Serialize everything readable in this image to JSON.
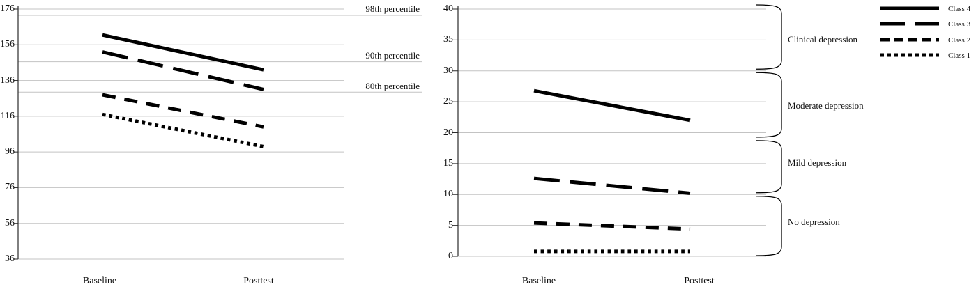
{
  "figure": {
    "background": "#ffffff",
    "panels": [
      "left-percentile-chart",
      "right-depression-chart"
    ]
  },
  "colors": {
    "series_line": "#000000",
    "gridline": "#c3c3c3",
    "axis": "#2b2b2b",
    "text": "#111111"
  },
  "chart_data": [
    {
      "type": "line",
      "title": "",
      "xlabel": "",
      "ylabel": "",
      "x_categories": [
        "Baseline",
        "Posttest"
      ],
      "ylim": [
        36,
        176
      ],
      "yticks": [
        176,
        156,
        136,
        116,
        96,
        76,
        56,
        36
      ],
      "grid": "horizontal",
      "legend_position": "none",
      "series": [
        {
          "name": "Class 4",
          "style": "solid",
          "values": [
            161.5,
            142
          ]
        },
        {
          "name": "Class 3",
          "style": "long-dash",
          "values": [
            152,
            131
          ]
        },
        {
          "name": "Class 2",
          "style": "dash",
          "values": [
            128,
            110
          ]
        },
        {
          "name": "Class 1",
          "style": "dot",
          "values": [
            117,
            99
          ]
        }
      ],
      "reference_lines": [
        {
          "label": "98th percentile",
          "value": 172.5
        },
        {
          "label": "90th percentile",
          "value": 146.5
        },
        {
          "label": "80th percentile",
          "value": 129.5
        }
      ]
    },
    {
      "type": "line",
      "title": "",
      "xlabel": "",
      "ylabel": "",
      "x_categories": [
        "Baseline",
        "Posttest"
      ],
      "ylim": [
        0,
        40
      ],
      "yticks": [
        40,
        35,
        30,
        25,
        20,
        15,
        10,
        5,
        0
      ],
      "grid": "horizontal",
      "legend_position": "top-right",
      "series": [
        {
          "name": "Class 4",
          "style": "solid",
          "values": [
            26.8,
            22
          ]
        },
        {
          "name": "Class 3",
          "style": "long-dash",
          "values": [
            12.6,
            10.2
          ]
        },
        {
          "name": "Class 2",
          "style": "dash",
          "values": [
            5.4,
            4.4
          ]
        },
        {
          "name": "Class 1",
          "style": "dot",
          "values": [
            0.8,
            0.8
          ]
        }
      ],
      "regions": [
        {
          "label": "Clinical depression",
          "from": 30,
          "to": 40
        },
        {
          "label": "Moderate depression",
          "from": 19,
          "to": 30
        },
        {
          "label": "Mild depression",
          "from": 10,
          "to": 19
        },
        {
          "label": "No depression",
          "from": 0,
          "to": 10
        }
      ]
    }
  ]
}
